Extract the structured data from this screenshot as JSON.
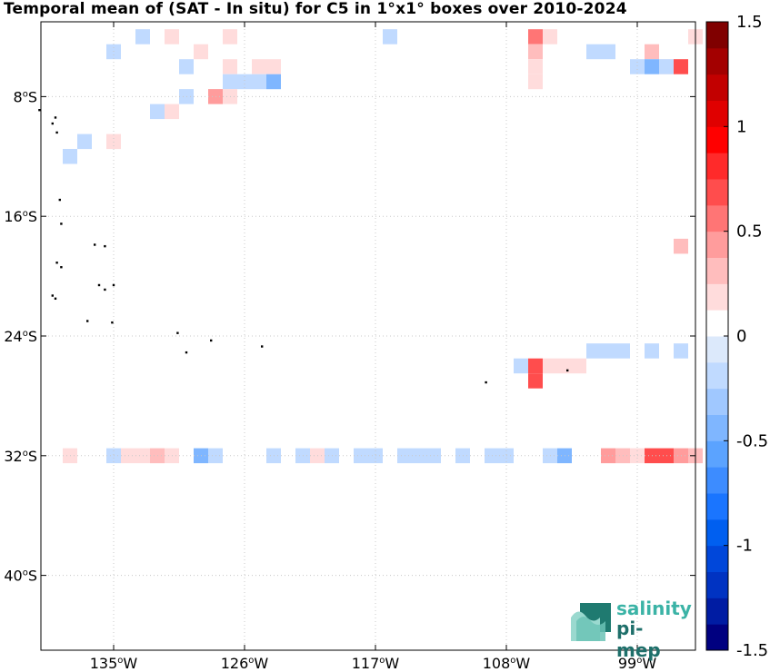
{
  "chart_data": {
    "type": "heatmap",
    "title": "Temporal mean of (SAT - In situ) for C5 in 1°x1° boxes over 2010-2024",
    "x_ticks": [
      {
        "value": -135,
        "label": "135°W"
      },
      {
        "value": -126,
        "label": "126°W"
      },
      {
        "value": -117,
        "label": "117°W"
      },
      {
        "value": -108,
        "label": "108°W"
      },
      {
        "value": -99,
        "label": "99°W"
      }
    ],
    "y_ticks": [
      {
        "value": -8,
        "label": "8°S"
      },
      {
        "value": -16,
        "label": "16°S"
      },
      {
        "value": -24,
        "label": "24°S"
      },
      {
        "value": -32,
        "label": "32°S"
      },
      {
        "value": -40,
        "label": "40°S"
      }
    ],
    "xlim": [
      -140,
      -95
    ],
    "ylim": [
      -45,
      -3
    ],
    "grid": true,
    "colorbar": {
      "min": -1.5,
      "max": 1.5,
      "levels": 24,
      "ticks": [
        {
          "value": 1.5,
          "label": "1.5"
        },
        {
          "value": 1,
          "label": "1"
        },
        {
          "value": 0.5,
          "label": "0.5"
        },
        {
          "value": 0,
          "label": "0"
        },
        {
          "value": -0.5,
          "label": "-0.5"
        },
        {
          "value": -1,
          "label": "-1"
        },
        {
          "value": -1.5,
          "label": "-1.5"
        }
      ]
    },
    "cells": [
      {
        "lon": -133,
        "lat": -4,
        "v": -0.25
      },
      {
        "lon": -131,
        "lat": -4,
        "v": 0.13
      },
      {
        "lon": -127,
        "lat": -4,
        "v": 0.13
      },
      {
        "lon": -116,
        "lat": -4,
        "v": -0.13
      },
      {
        "lon": -106,
        "lat": -4,
        "v": 0.5
      },
      {
        "lon": -105,
        "lat": -4,
        "v": 0.13
      },
      {
        "lon": -95,
        "lat": -4,
        "v": 0.13
      },
      {
        "lon": -135,
        "lat": -5,
        "v": -0.13
      },
      {
        "lon": -129,
        "lat": -5,
        "v": 0.13
      },
      {
        "lon": -106,
        "lat": -5,
        "v": 0.25
      },
      {
        "lon": -102,
        "lat": -5,
        "v": -0.13
      },
      {
        "lon": -101,
        "lat": -5,
        "v": -0.13
      },
      {
        "lon": -98,
        "lat": -5,
        "v": 0.25
      },
      {
        "lon": -130,
        "lat": -6,
        "v": -0.13
      },
      {
        "lon": -127,
        "lat": -6,
        "v": 0.13
      },
      {
        "lon": -125,
        "lat": -6,
        "v": 0.13
      },
      {
        "lon": -124,
        "lat": -6,
        "v": 0.13
      },
      {
        "lon": -106,
        "lat": -6,
        "v": 0.13
      },
      {
        "lon": -97,
        "lat": -6,
        "v": 0.13
      },
      {
        "lon": -99,
        "lat": -6,
        "v": -0.13
      },
      {
        "lon": -98,
        "lat": -6,
        "v": -0.38
      },
      {
        "lon": -97,
        "lat": -6,
        "v": -0.25
      },
      {
        "lon": -96,
        "lat": -6,
        "v": 0.63
      },
      {
        "lon": -127,
        "lat": -7,
        "v": -0.13
      },
      {
        "lon": -126,
        "lat": -7,
        "v": -0.13
      },
      {
        "lon": -125,
        "lat": -7,
        "v": -0.13
      },
      {
        "lon": -124,
        "lat": -7,
        "v": -0.5
      },
      {
        "lon": -106,
        "lat": -7,
        "v": 0.13
      },
      {
        "lon": -130,
        "lat": -8,
        "v": -0.13
      },
      {
        "lon": -128,
        "lat": -8,
        "v": 0.38
      },
      {
        "lon": -127,
        "lat": -8,
        "v": 0.13
      },
      {
        "lon": -132,
        "lat": -9,
        "v": -0.25
      },
      {
        "lon": -131,
        "lat": -9,
        "v": 0.13
      },
      {
        "lon": -137,
        "lat": -11,
        "v": -0.13
      },
      {
        "lon": -135,
        "lat": -11,
        "v": 0.13
      },
      {
        "lon": -138,
        "lat": -12,
        "v": -0.25
      },
      {
        "lon": -96,
        "lat": -18,
        "v": 0.25
      },
      {
        "lon": -102,
        "lat": -25,
        "v": -0.13
      },
      {
        "lon": -101,
        "lat": -25,
        "v": -0.25
      },
      {
        "lon": -100,
        "lat": -25,
        "v": -0.13
      },
      {
        "lon": -98,
        "lat": -25,
        "v": -0.13
      },
      {
        "lon": -96,
        "lat": -25,
        "v": -0.25
      },
      {
        "lon": -107,
        "lat": -26,
        "v": -0.13
      },
      {
        "lon": -106,
        "lat": -26,
        "v": 0.63
      },
      {
        "lon": -105,
        "lat": -26,
        "v": 0.13
      },
      {
        "lon": -104,
        "lat": -26,
        "v": 0.13
      },
      {
        "lon": -103,
        "lat": -26,
        "v": 0.13
      },
      {
        "lon": -106,
        "lat": -27,
        "v": 0.63
      },
      {
        "lon": -138,
        "lat": -32,
        "v": 0.13
      },
      {
        "lon": -135,
        "lat": -32,
        "v": -0.13
      },
      {
        "lon": -134,
        "lat": -32,
        "v": 0.13
      },
      {
        "lon": -133,
        "lat": -32,
        "v": 0.13
      },
      {
        "lon": -132,
        "lat": -32,
        "v": 0.25
      },
      {
        "lon": -131,
        "lat": -32,
        "v": 0.13
      },
      {
        "lon": -129,
        "lat": -32,
        "v": -0.38
      },
      {
        "lon": -128,
        "lat": -32,
        "v": -0.13
      },
      {
        "lon": -124,
        "lat": -32,
        "v": -0.13
      },
      {
        "lon": -122,
        "lat": -32,
        "v": -0.13
      },
      {
        "lon": -121,
        "lat": -32,
        "v": 0.13
      },
      {
        "lon": -120,
        "lat": -32,
        "v": -0.25
      },
      {
        "lon": -118,
        "lat": -32,
        "v": -0.13
      },
      {
        "lon": -117,
        "lat": -32,
        "v": -0.13
      },
      {
        "lon": -115,
        "lat": -32,
        "v": -0.13
      },
      {
        "lon": -114,
        "lat": -32,
        "v": -0.13
      },
      {
        "lon": -113,
        "lat": -32,
        "v": -0.13
      },
      {
        "lon": -111,
        "lat": -32,
        "v": -0.13
      },
      {
        "lon": -109,
        "lat": -32,
        "v": -0.13
      },
      {
        "lon": -108,
        "lat": -32,
        "v": -0.13
      },
      {
        "lon": -105,
        "lat": -32,
        "v": -0.13
      },
      {
        "lon": -104,
        "lat": -32,
        "v": -0.5
      },
      {
        "lon": -101,
        "lat": -32,
        "v": 0.38
      },
      {
        "lon": -100,
        "lat": -32,
        "v": 0.25
      },
      {
        "lon": -99,
        "lat": -32,
        "v": 0.13
      },
      {
        "lon": -98,
        "lat": -32,
        "v": 0.63
      },
      {
        "lon": -97,
        "lat": -32,
        "v": 0.63
      },
      {
        "lon": -96,
        "lat": -32,
        "v": 0.38
      },
      {
        "lon": -95,
        "lat": -32,
        "v": 0.25
      }
    ]
  },
  "logo": {
    "line1": "salinity",
    "line2": "pi-mep"
  }
}
